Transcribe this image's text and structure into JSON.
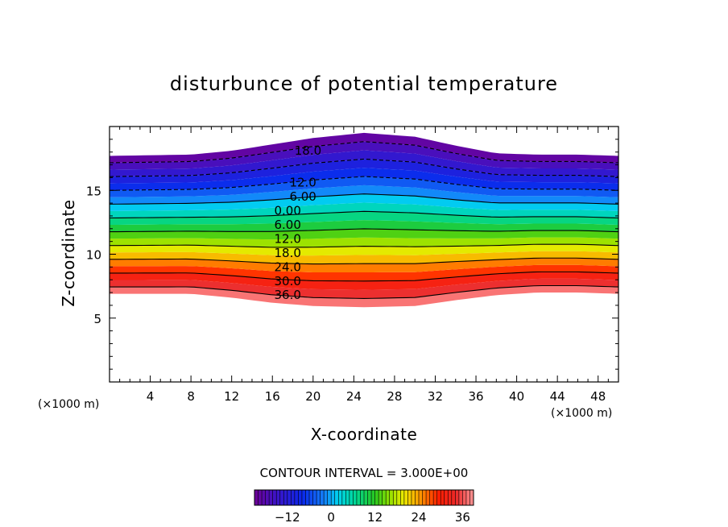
{
  "chart_data": {
    "type": "contour",
    "title": "disturbunce of potential temperature",
    "xlabel": "X-coordinate",
    "ylabel": "Z-coordinate",
    "x_unit_label_left": "(×1000 m)",
    "x_unit_label_right": "(×1000 m)",
    "xlim": [
      0,
      50
    ],
    "ylim": [
      0,
      20
    ],
    "xticks": [
      4,
      8,
      12,
      16,
      20,
      24,
      28,
      32,
      36,
      40,
      44,
      48
    ],
    "xtick_labels": [
      "4",
      "8",
      "12",
      "16",
      "20",
      "24",
      "28",
      "32",
      "36",
      "40",
      "44",
      "48"
    ],
    "yticks": [
      5,
      10,
      15
    ],
    "ytick_labels": [
      "5",
      "10",
      "15"
    ],
    "contour_interval_text": "CONTOUR INTERVAL = 3.000E+00",
    "field_range": [
      -21,
      39
    ],
    "contour_interval": 3,
    "field_bottom_edge": {
      "x": [
        0,
        8,
        12,
        16,
        20,
        25,
        30,
        34,
        38,
        42,
        46,
        50
      ],
      "z": [
        6.9,
        6.9,
        6.6,
        6.2,
        5.95,
        5.85,
        5.95,
        6.4,
        6.8,
        7.0,
        7.0,
        6.9
      ]
    },
    "field_top_edge": {
      "x": [
        0,
        8,
        12,
        16,
        20,
        25,
        30,
        34,
        38,
        42,
        46,
        50
      ],
      "z": [
        17.7,
        17.8,
        18.1,
        18.6,
        19.1,
        19.5,
        19.2,
        18.5,
        17.9,
        17.8,
        17.8,
        17.7
      ]
    },
    "contour_labels": [
      {
        "text": "18.0",
        "x": 19.5,
        "z": 18.1
      },
      {
        "text": "12.0",
        "x": 19.0,
        "z": 15.6
      },
      {
        "text": "6.00",
        "x": 19.0,
        "z": 14.5
      },
      {
        "text": "0.00",
        "x": 17.5,
        "z": 13.4
      },
      {
        "text": "6.00",
        "x": 17.5,
        "z": 12.3
      },
      {
        "text": "12.0",
        "x": 17.5,
        "z": 11.2
      },
      {
        "text": "18.0",
        "x": 17.5,
        "z": 10.1
      },
      {
        "text": "24.0",
        "x": 17.5,
        "z": 9.0
      },
      {
        "text": "30.0",
        "x": 17.5,
        "z": 7.9
      },
      {
        "text": "36.0",
        "x": 17.5,
        "z": 6.8
      }
    ],
    "colorbar": {
      "ticks": [
        -12,
        0,
        12,
        24,
        36
      ],
      "tick_labels": [
        "−12",
        "0",
        "12",
        "24",
        "36"
      ],
      "range": [
        -21,
        39
      ]
    }
  }
}
